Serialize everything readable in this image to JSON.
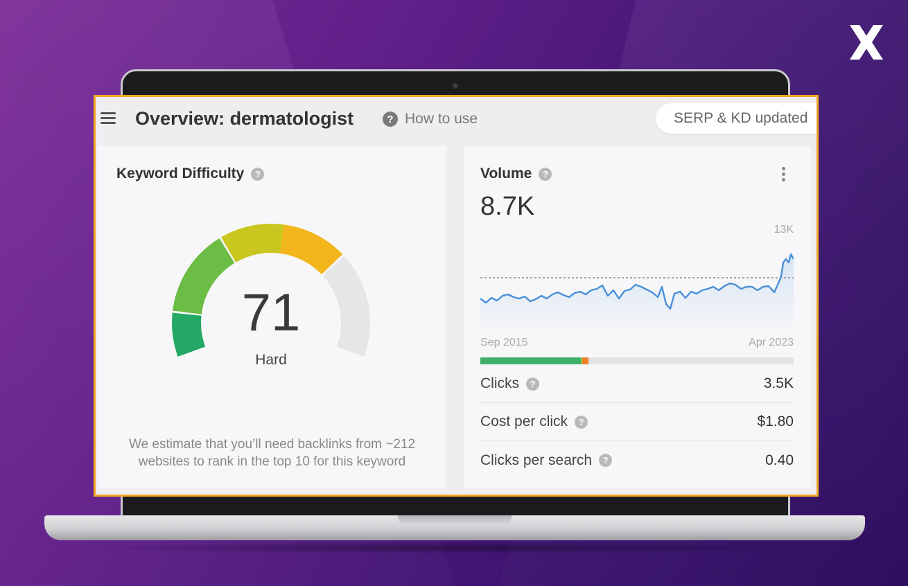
{
  "header": {
    "title": "Overview: dermatologist",
    "how_to_use": "How to use",
    "serp_status": "SERP & KD updated"
  },
  "keyword_difficulty": {
    "title": "Keyword Difficulty",
    "score": "71",
    "level": "Hard",
    "score_fraction": 0.71,
    "estimate_line1": "We estimate that you’ll need backlinks from ~212",
    "estimate_line2": "websites to rank in the top 10 for this keyword",
    "colors": {
      "segment_dark_green": "#24a865",
      "segment_green": "#6cbd45",
      "segment_yellow_green": "#c9c71f",
      "segment_orange": "#f2b51c",
      "segment_empty": "#e6e6e9"
    }
  },
  "volume": {
    "title": "Volume",
    "value": "8.7K",
    "chart_max_label": "13K",
    "date_start": "Sep 2015",
    "date_end": "Apr 2023",
    "line_color": "#4a90d9"
  },
  "intent_bar": {
    "segments": [
      {
        "color": "#3eae6a",
        "fraction": 0.32
      },
      {
        "color": "#8bc34a",
        "fraction": 0.006
      },
      {
        "color": "#f07f2a",
        "fraction": 0.02
      }
    ]
  },
  "metrics": [
    {
      "label": "Clicks",
      "value": "3.5K"
    },
    {
      "label": "Cost per click",
      "value": "$1.80"
    },
    {
      "label": "Clicks per search",
      "value": "0.40"
    }
  ],
  "icons": {
    "menu": "hamburger-menu-icon",
    "help": "question-mark-icon",
    "more": "vertical-dots-icon",
    "brand": "x-logo-icon"
  }
}
